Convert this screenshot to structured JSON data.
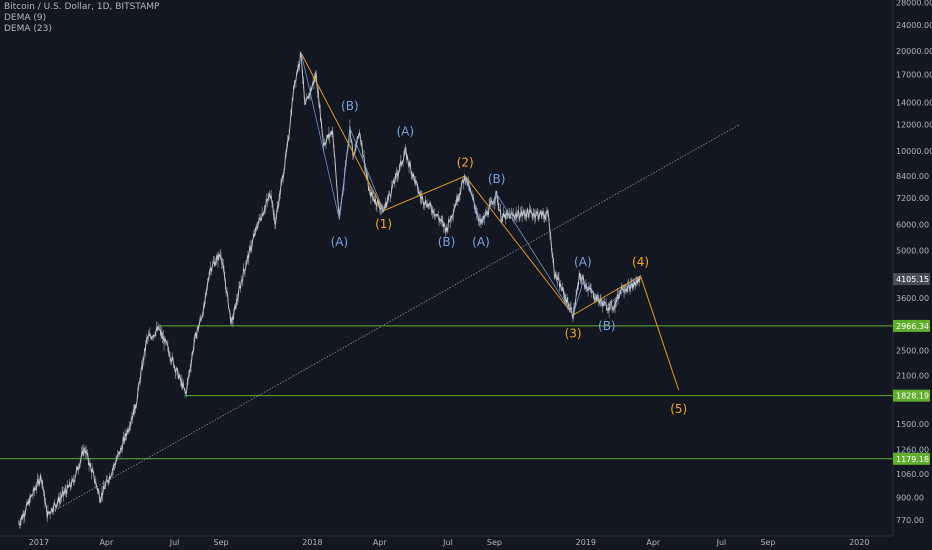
{
  "header": {
    "title": "Bitcoin / U.S. Dollar, 1D, BITSTAMP",
    "indicator_1": "DEMA (9)",
    "indicator_2": "DEMA (23)"
  },
  "colors": {
    "background": "#131722",
    "text": "#b2b5be",
    "candle": "#a6a9b1",
    "support": "#5fae2e",
    "wave_primary": "#f5a623",
    "wave_corrective": "#7aa2d6",
    "trendline": "#8a8d95"
  },
  "chart_data": {
    "type": "line",
    "y_scale": "log",
    "ylim": [
      690,
      28500
    ],
    "xlim": [
      "2016-11-10",
      "2020-02-15"
    ],
    "x_ticks": [
      {
        "label": "2017",
        "date": "2017-01-01"
      },
      {
        "label": "Apr",
        "date": "2017-04-01"
      },
      {
        "label": "Jul",
        "date": "2017-07-01"
      },
      {
        "label": "Sep",
        "date": "2017-09-01"
      },
      {
        "label": "2018",
        "date": "2018-01-01"
      },
      {
        "label": "Apr",
        "date": "2018-04-01"
      },
      {
        "label": "Jul",
        "date": "2018-07-01"
      },
      {
        "label": "Sep",
        "date": "2018-09-01"
      },
      {
        "label": "2019",
        "date": "2019-01-01"
      },
      {
        "label": "Apr",
        "date": "2019-04-01"
      },
      {
        "label": "Jul",
        "date": "2019-07-01"
      },
      {
        "label": "Sep",
        "date": "2019-09-01"
      },
      {
        "label": "2020",
        "date": "2020-01-01"
      }
    ],
    "y_ticks": [
      "28000.00",
      "24000.00",
      "20000.00",
      "17000.00",
      "14000.00",
      "12000.00",
      "10000.00",
      "8400.00",
      "7200.00",
      "6000.00",
      "5000.00",
      "3600.00",
      "2500.00",
      "2100.00",
      "1500.00",
      "1260.00",
      "1060.00",
      "900.00",
      "770.00"
    ],
    "price_tags": [
      {
        "value": "4105.15",
        "style": "current"
      },
      {
        "value": "2966.34",
        "style": "support"
      },
      {
        "value": "1828.19",
        "style": "support"
      },
      {
        "value": "1179.18",
        "style": "support"
      }
    ],
    "series": [
      {
        "points": [
          [
            "2016-12-05",
            750
          ],
          [
            "2017-01-04",
            1050
          ],
          [
            "2017-01-12",
            800
          ],
          [
            "2017-02-15",
            1000
          ],
          [
            "2017-03-03",
            1270
          ],
          [
            "2017-03-24",
            900
          ],
          [
            "2017-04-20",
            1250
          ],
          [
            "2017-05-10",
            1700
          ],
          [
            "2017-05-25",
            2700
          ],
          [
            "2017-06-10",
            2900
          ],
          [
            "2017-06-20",
            2600
          ],
          [
            "2017-07-16",
            1850
          ],
          [
            "2017-07-28",
            2700
          ],
          [
            "2017-08-10",
            3400
          ],
          [
            "2017-08-17",
            4400
          ],
          [
            "2017-09-01",
            4900
          ],
          [
            "2017-09-15",
            3000
          ],
          [
            "2017-10-01",
            4300
          ],
          [
            "2017-10-20",
            6000
          ],
          [
            "2017-11-07",
            7500
          ],
          [
            "2017-11-12",
            6000
          ],
          [
            "2017-11-28",
            10000
          ],
          [
            "2017-12-08",
            16000
          ],
          [
            "2017-12-17",
            19700
          ],
          [
            "2017-12-22",
            13500
          ],
          [
            "2018-01-06",
            17000
          ],
          [
            "2018-01-16",
            10500
          ],
          [
            "2018-01-28",
            11500
          ],
          [
            "2018-02-06",
            6200
          ],
          [
            "2018-02-20",
            11700
          ],
          [
            "2018-02-25",
            9500
          ],
          [
            "2018-03-05",
            11500
          ],
          [
            "2018-03-18",
            7500
          ],
          [
            "2018-04-06",
            6600
          ],
          [
            "2018-05-05",
            9900
          ],
          [
            "2018-05-25",
            7300
          ],
          [
            "2018-06-12",
            6600
          ],
          [
            "2018-06-29",
            5800
          ],
          [
            "2018-07-24",
            8400
          ],
          [
            "2018-08-14",
            6000
          ],
          [
            "2018-09-04",
            7400
          ],
          [
            "2018-09-10",
            6300
          ],
          [
            "2018-10-15",
            6500
          ],
          [
            "2018-11-12",
            6400
          ],
          [
            "2018-11-20",
            4300
          ],
          [
            "2018-12-15",
            3200
          ],
          [
            "2018-12-24",
            4200
          ],
          [
            "2019-01-10",
            3700
          ],
          [
            "2019-01-28",
            3400
          ],
          [
            "2019-02-08",
            3400
          ],
          [
            "2019-02-18",
            3900
          ],
          [
            "2019-02-28",
            3850
          ],
          [
            "2019-03-15",
            4105
          ]
        ]
      }
    ],
    "support_lines": [
      {
        "value": 2966.34,
        "from": "2017-06-10"
      },
      {
        "value": 1828.19,
        "from": "2017-07-16"
      },
      {
        "value": 1179.18,
        "from": "2016-11-10"
      }
    ],
    "trendline": [
      [
        "2017-01-12",
        800
      ],
      [
        "2019-07-25",
        12000
      ]
    ],
    "wave_paths": [
      {
        "kind": "primary",
        "points": [
          [
            "2017-12-17",
            19700
          ],
          [
            "2018-04-06",
            6600
          ],
          [
            "2018-07-24",
            8400
          ],
          [
            "2018-12-15",
            3200
          ],
          [
            "2019-03-15",
            4200
          ],
          [
            "2019-05-05",
            1900
          ]
        ]
      },
      {
        "kind": "corrective",
        "points": [
          [
            "2017-12-17",
            19700
          ],
          [
            "2018-02-06",
            6200
          ],
          [
            "2018-02-20",
            11700
          ],
          [
            "2018-04-06",
            6600
          ]
        ]
      },
      {
        "kind": "corrective",
        "points": [
          [
            "2018-07-24",
            8400
          ],
          [
            "2018-08-14",
            6000
          ],
          [
            "2018-09-04",
            7400
          ],
          [
            "2018-12-15",
            3200
          ]
        ]
      },
      {
        "kind": "corrective",
        "points": [
          [
            "2018-12-15",
            3200
          ],
          [
            "2018-12-28",
            4000
          ],
          [
            "2019-01-29",
            3400
          ],
          [
            "2019-03-15",
            4200
          ]
        ]
      }
    ],
    "wave_labels": [
      {
        "text": "(A)",
        "kind": "corrective",
        "x": "2018-02-06",
        "y": 5300
      },
      {
        "text": "(B)",
        "kind": "corrective",
        "x": "2018-02-20",
        "y": 13600
      },
      {
        "text": "(A)",
        "kind": "corrective",
        "x": "2018-05-05",
        "y": 11400
      },
      {
        "text": "(1)",
        "kind": "primary",
        "x": "2018-04-06",
        "y": 6000
      },
      {
        "text": "(2)",
        "kind": "primary",
        "x": "2018-07-24",
        "y": 9200
      },
      {
        "text": "(B)",
        "kind": "corrective",
        "x": "2018-06-29",
        "y": 5300
      },
      {
        "text": "(A)",
        "kind": "corrective",
        "x": "2018-08-14",
        "y": 5300
      },
      {
        "text": "(B)",
        "kind": "corrective",
        "x": "2018-09-04",
        "y": 8200
      },
      {
        "text": "(A)",
        "kind": "corrective",
        "x": "2018-12-28",
        "y": 4600
      },
      {
        "text": "(3)",
        "kind": "primary",
        "x": "2018-12-15",
        "y": 2800
      },
      {
        "text": "(B)",
        "kind": "corrective",
        "x": "2019-01-29",
        "y": 2950
      },
      {
        "text": "(4)",
        "kind": "primary",
        "x": "2019-03-15",
        "y": 4600
      },
      {
        "text": "(5)",
        "kind": "primary",
        "x": "2019-05-05",
        "y": 1660
      }
    ]
  }
}
